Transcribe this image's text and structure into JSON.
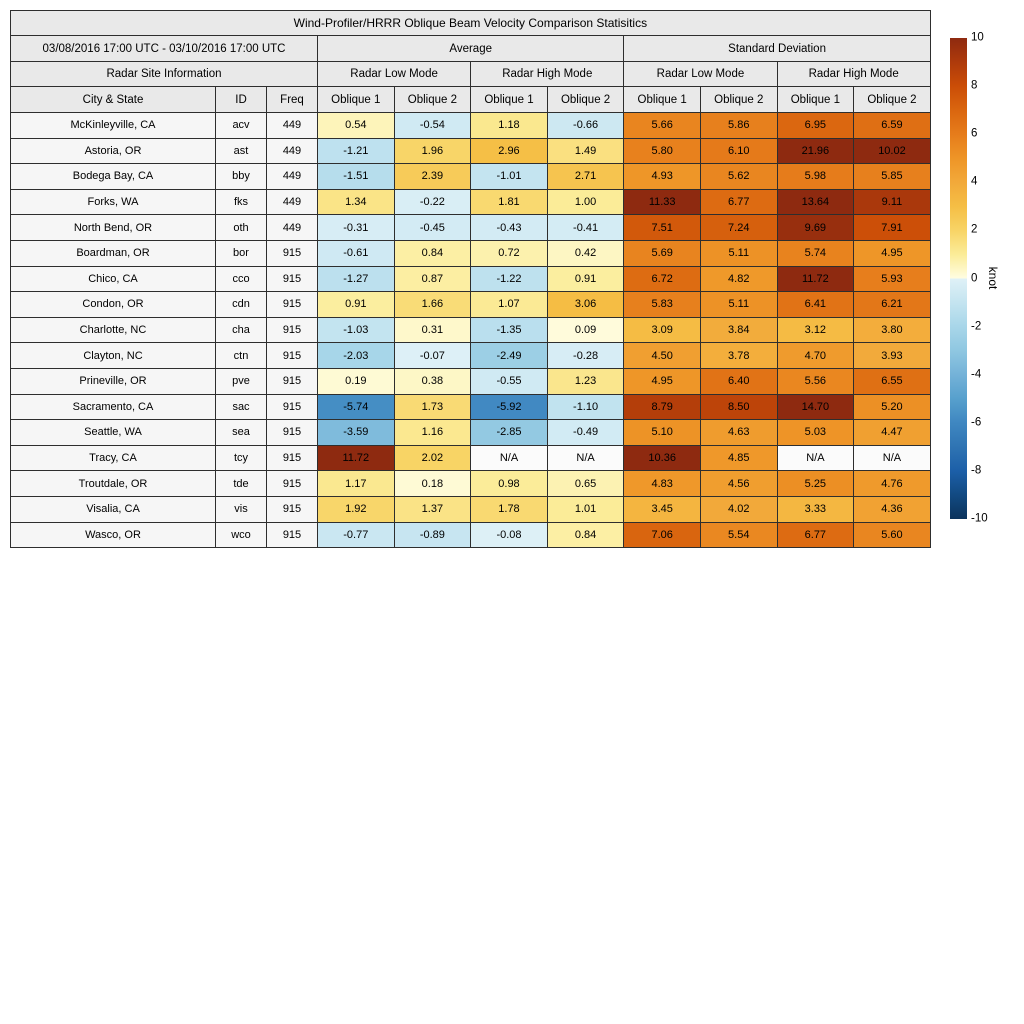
{
  "title": "Wind-Profiler/HRRR Oblique Beam Velocity Comparison Statisitics",
  "header": {
    "date_range": "03/08/2016 17:00 UTC - 03/10/2016 17:00 UTC",
    "group_average": "Average",
    "group_std": "Standard Deviation",
    "site_info": "Radar Site Information",
    "mode_labels": [
      "Radar Low Mode",
      "Radar High Mode",
      "Radar Low Mode",
      "Radar High Mode"
    ],
    "col_labels": [
      "City & State",
      "ID",
      "Freq",
      "Oblique 1",
      "Oblique 2",
      "Oblique 1",
      "Oblique 2",
      "Oblique 1",
      "Oblique 2",
      "Oblique 1",
      "Oblique 2"
    ]
  },
  "colorbar": {
    "label": "knot",
    "min": -10,
    "max": 10,
    "ticks": [
      10,
      8,
      6,
      4,
      2,
      0,
      -2,
      -4,
      -6,
      -8,
      -10
    ]
  },
  "colors": {
    "header_bg": "#e9e9e9",
    "label_bg": "#f6f6f6",
    "na_bg": "#fbfbfb",
    "border": "#2e2e2e",
    "colormap_stops": [
      [
        -10,
        "#0B335C"
      ],
      [
        -9,
        "#124A82"
      ],
      [
        -8,
        "#1C5FA8"
      ],
      [
        -7,
        "#2F74B3"
      ],
      [
        -6,
        "#3F87C1"
      ],
      [
        -5,
        "#57A0CD"
      ],
      [
        -4,
        "#74B2D8"
      ],
      [
        -3,
        "#8FC7E1"
      ],
      [
        -2,
        "#A8D6E9"
      ],
      [
        -1,
        "#C4E4F0"
      ],
      [
        -0.001,
        "#DFF1F7"
      ],
      [
        0.001,
        "#FFFDE2"
      ],
      [
        1,
        "#FBEC98"
      ],
      [
        2,
        "#F8D466"
      ],
      [
        3,
        "#F5BE45"
      ],
      [
        4,
        "#F2A93A"
      ],
      [
        5,
        "#EE9527"
      ],
      [
        6,
        "#E67C1B"
      ],
      [
        7,
        "#DA660F"
      ],
      [
        8,
        "#CB4D07"
      ],
      [
        9,
        "#AE3A0B"
      ],
      [
        10,
        "#8E2A10"
      ]
    ]
  },
  "chart_data": {
    "type": "heatmap",
    "title": "Wind-Profiler/HRRR Oblique Beam Velocity Comparison Statisitics",
    "period": "03/08/2016 17:00 UTC - 03/10/2016 17:00 UTC",
    "units": "knot",
    "color_scale": {
      "min": -10,
      "max": 10,
      "ticks": [
        10,
        8,
        6,
        4,
        2,
        0,
        -2,
        -4,
        -6,
        -8,
        -10
      ],
      "label": "knot"
    },
    "value_columns": [
      "avg_low_oblique1",
      "avg_low_oblique2",
      "avg_high_oblique1",
      "avg_high_oblique2",
      "std_low_oblique1",
      "std_low_oblique2",
      "std_high_oblique1",
      "std_high_oblique2"
    ],
    "rows": [
      {
        "city": "McKinleyville, CA",
        "id": "acv",
        "freq": "449",
        "values": [
          "0.54",
          "-0.54",
          "1.18",
          "-0.66",
          "5.66",
          "5.86",
          "6.95",
          "6.59"
        ]
      },
      {
        "city": "Astoria, OR",
        "id": "ast",
        "freq": "449",
        "values": [
          "-1.21",
          "1.96",
          "2.96",
          "1.49",
          "5.80",
          "6.10",
          "21.96",
          "10.02"
        ]
      },
      {
        "city": "Bodega Bay, CA",
        "id": "bby",
        "freq": "449",
        "values": [
          "-1.51",
          "2.39",
          "-1.01",
          "2.71",
          "4.93",
          "5.62",
          "5.98",
          "5.85"
        ]
      },
      {
        "city": "Forks, WA",
        "id": "fks",
        "freq": "449",
        "values": [
          "1.34",
          "-0.22",
          "1.81",
          "1.00",
          "11.33",
          "6.77",
          "13.64",
          "9.11"
        ]
      },
      {
        "city": "North Bend, OR",
        "id": "oth",
        "freq": "449",
        "values": [
          "-0.31",
          "-0.45",
          "-0.43",
          "-0.41",
          "7.51",
          "7.24",
          "9.69",
          "7.91"
        ]
      },
      {
        "city": "Boardman, OR",
        "id": "bor",
        "freq": "915",
        "values": [
          "-0.61",
          "0.84",
          "0.72",
          "0.42",
          "5.69",
          "5.11",
          "5.74",
          "4.95"
        ]
      },
      {
        "city": "Chico, CA",
        "id": "cco",
        "freq": "915",
        "values": [
          "-1.27",
          "0.87",
          "-1.22",
          "0.91",
          "6.72",
          "4.82",
          "11.72",
          "5.93"
        ]
      },
      {
        "city": "Condon, OR",
        "id": "cdn",
        "freq": "915",
        "values": [
          "0.91",
          "1.66",
          "1.07",
          "3.06",
          "5.83",
          "5.11",
          "6.41",
          "6.21"
        ]
      },
      {
        "city": "Charlotte, NC",
        "id": "cha",
        "freq": "915",
        "values": [
          "-1.03",
          "0.31",
          "-1.35",
          "0.09",
          "3.09",
          "3.84",
          "3.12",
          "3.80"
        ]
      },
      {
        "city": "Clayton, NC",
        "id": "ctn",
        "freq": "915",
        "values": [
          "-2.03",
          "-0.07",
          "-2.49",
          "-0.28",
          "4.50",
          "3.78",
          "4.70",
          "3.93"
        ]
      },
      {
        "city": "Prineville, OR",
        "id": "pve",
        "freq": "915",
        "values": [
          "0.19",
          "0.38",
          "-0.55",
          "1.23",
          "4.95",
          "6.40",
          "5.56",
          "6.55"
        ]
      },
      {
        "city": "Sacramento, CA",
        "id": "sac",
        "freq": "915",
        "values": [
          "-5.74",
          "1.73",
          "-5.92",
          "-1.10",
          "8.79",
          "8.50",
          "14.70",
          "5.20"
        ]
      },
      {
        "city": "Seattle, WA",
        "id": "sea",
        "freq": "915",
        "values": [
          "-3.59",
          "1.16",
          "-2.85",
          "-0.49",
          "5.10",
          "4.63",
          "5.03",
          "4.47"
        ]
      },
      {
        "city": "Tracy, CA",
        "id": "tcy",
        "freq": "915",
        "values": [
          "11.72",
          "2.02",
          "N/A",
          "N/A",
          "10.36",
          "4.85",
          "N/A",
          "N/A"
        ]
      },
      {
        "city": "Troutdale, OR",
        "id": "tde",
        "freq": "915",
        "values": [
          "1.17",
          "0.18",
          "0.98",
          "0.65",
          "4.83",
          "4.56",
          "5.25",
          "4.76"
        ]
      },
      {
        "city": "Visalia, CA",
        "id": "vis",
        "freq": "915",
        "values": [
          "1.92",
          "1.37",
          "1.78",
          "1.01",
          "3.45",
          "4.02",
          "3.33",
          "4.36"
        ]
      },
      {
        "city": "Wasco, OR",
        "id": "wco",
        "freq": "915",
        "values": [
          "-0.77",
          "-0.89",
          "-0.08",
          "0.84",
          "7.06",
          "5.54",
          "6.77",
          "5.60"
        ]
      }
    ]
  }
}
